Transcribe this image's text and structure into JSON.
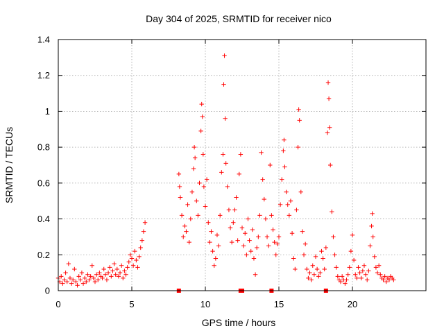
{
  "chart_data": {
    "type": "scatter",
    "title": "Day 304 of 2025, SRMTID for receiver nico",
    "xlabel": "GPS time / hours",
    "ylabel": "SRMTID / TECUs",
    "xlim": [
      0,
      25
    ],
    "ylim": [
      0,
      1.4
    ],
    "xticks": [
      0,
      5,
      10,
      15,
      20
    ],
    "yticks": [
      0,
      0.2,
      0.4,
      0.6,
      0.8,
      1,
      1.2,
      1.4
    ],
    "xtick_labels": [
      "0",
      "5",
      "10",
      "15",
      "20"
    ],
    "ytick_labels": [
      "0",
      "0.2",
      "0.4",
      "0.6",
      "0.8",
      "1",
      "1.2",
      "1.4"
    ],
    "grid": true,
    "marker": "+",
    "series": [
      {
        "name": "SRMTID",
        "color": "#ff0000",
        "points": [
          [
            0.0,
            0.07
          ],
          [
            0.1,
            0.05
          ],
          [
            0.2,
            0.08
          ],
          [
            0.3,
            0.04
          ],
          [
            0.4,
            0.06
          ],
          [
            0.5,
            0.1
          ],
          [
            0.6,
            0.05
          ],
          [
            0.7,
            0.15
          ],
          [
            0.8,
            0.07
          ],
          [
            0.9,
            0.04
          ],
          [
            1.0,
            0.06
          ],
          [
            1.1,
            0.12
          ],
          [
            1.2,
            0.05
          ],
          [
            1.3,
            0.03
          ],
          [
            1.4,
            0.08
          ],
          [
            1.5,
            0.06
          ],
          [
            1.6,
            0.1
          ],
          [
            1.7,
            0.04
          ],
          [
            1.8,
            0.07
          ],
          [
            1.9,
            0.05
          ],
          [
            2.0,
            0.09
          ],
          [
            2.1,
            0.06
          ],
          [
            2.2,
            0.08
          ],
          [
            2.3,
            0.14
          ],
          [
            2.4,
            0.07
          ],
          [
            2.5,
            0.05
          ],
          [
            2.6,
            0.09
          ],
          [
            2.7,
            0.06
          ],
          [
            2.8,
            0.1
          ],
          [
            2.9,
            0.08
          ],
          [
            3.0,
            0.07
          ],
          [
            3.1,
            0.12
          ],
          [
            3.2,
            0.09
          ],
          [
            3.3,
            0.06
          ],
          [
            3.4,
            0.1
          ],
          [
            3.5,
            0.13
          ],
          [
            3.6,
            0.08
          ],
          [
            3.7,
            0.11
          ],
          [
            3.8,
            0.15
          ],
          [
            3.9,
            0.09
          ],
          [
            4.0,
            0.12
          ],
          [
            4.1,
            0.08
          ],
          [
            4.2,
            0.1
          ],
          [
            4.3,
            0.14
          ],
          [
            4.4,
            0.07
          ],
          [
            4.5,
            0.11
          ],
          [
            4.6,
            0.09
          ],
          [
            4.7,
            0.13
          ],
          [
            4.8,
            0.16
          ],
          [
            4.9,
            0.2
          ],
          [
            5.0,
            0.18
          ],
          [
            5.1,
            0.14
          ],
          [
            5.2,
            0.22
          ],
          [
            5.3,
            0.17
          ],
          [
            5.4,
            0.13
          ],
          [
            5.5,
            0.19
          ],
          [
            5.6,
            0.24
          ],
          [
            5.7,
            0.28
          ],
          [
            5.8,
            0.33
          ],
          [
            5.9,
            0.38
          ],
          [
            8.2,
            0.65
          ],
          [
            8.25,
            0.58
          ],
          [
            8.3,
            0.52
          ],
          [
            8.4,
            0.42
          ],
          [
            8.5,
            0.3
          ],
          [
            8.6,
            0.36
          ],
          [
            8.7,
            0.33
          ],
          [
            8.8,
            0.48
          ],
          [
            8.9,
            0.27
          ],
          [
            9.0,
            0.4
          ],
          [
            9.1,
            0.55
          ],
          [
            9.2,
            0.68
          ],
          [
            9.25,
            0.8
          ],
          [
            9.3,
            0.74
          ],
          [
            9.4,
            0.5
          ],
          [
            9.5,
            0.42
          ],
          [
            9.6,
            0.6
          ],
          [
            9.7,
            0.89
          ],
          [
            9.75,
            1.04
          ],
          [
            9.8,
            0.97
          ],
          [
            9.85,
            0.76
          ],
          [
            9.9,
            0.58
          ],
          [
            10.0,
            0.47
          ],
          [
            10.1,
            0.62
          ],
          [
            10.2,
            0.38
          ],
          [
            10.3,
            0.27
          ],
          [
            10.4,
            0.33
          ],
          [
            10.5,
            0.22
          ],
          [
            10.6,
            0.14
          ],
          [
            10.7,
            0.18
          ],
          [
            10.8,
            0.31
          ],
          [
            10.9,
            0.25
          ],
          [
            11.0,
            0.42
          ],
          [
            11.1,
            0.66
          ],
          [
            11.2,
            0.76
          ],
          [
            11.25,
            1.15
          ],
          [
            11.3,
            1.31
          ],
          [
            11.35,
            0.96
          ],
          [
            11.4,
            0.71
          ],
          [
            11.5,
            0.58
          ],
          [
            11.6,
            0.45
          ],
          [
            11.7,
            0.35
          ],
          [
            11.8,
            0.27
          ],
          [
            11.9,
            0.38
          ],
          [
            12.0,
            0.45
          ],
          [
            12.1,
            0.52
          ],
          [
            12.2,
            0.28
          ],
          [
            12.3,
            0.65
          ],
          [
            12.4,
            0.76
          ],
          [
            12.5,
            0.35
          ],
          [
            12.6,
            0.25
          ],
          [
            12.7,
            0.32
          ],
          [
            12.8,
            0.2
          ],
          [
            12.9,
            0.4
          ],
          [
            13.0,
            0.28
          ],
          [
            13.1,
            0.22
          ],
          [
            13.2,
            0.34
          ],
          [
            13.3,
            0.18
          ],
          [
            13.4,
            0.09
          ],
          [
            13.5,
            0.24
          ],
          [
            13.6,
            0.3
          ],
          [
            13.7,
            0.42
          ],
          [
            13.8,
            0.77
          ],
          [
            13.9,
            0.62
          ],
          [
            14.0,
            0.51
          ],
          [
            14.1,
            0.4
          ],
          [
            14.2,
            0.3
          ],
          [
            14.3,
            0.25
          ],
          [
            14.4,
            0.7
          ],
          [
            14.5,
            0.42
          ],
          [
            14.6,
            0.34
          ],
          [
            14.7,
            0.27
          ],
          [
            14.8,
            0.2
          ],
          [
            14.9,
            0.26
          ],
          [
            15.0,
            0.3
          ],
          [
            15.1,
            0.48
          ],
          [
            15.2,
            0.62
          ],
          [
            15.3,
            0.78
          ],
          [
            15.35,
            0.84
          ],
          [
            15.4,
            0.69
          ],
          [
            15.5,
            0.55
          ],
          [
            15.6,
            0.48
          ],
          [
            15.7,
            0.42
          ],
          [
            15.8,
            0.5
          ],
          [
            15.9,
            0.32
          ],
          [
            16.0,
            0.18
          ],
          [
            16.1,
            0.12
          ],
          [
            16.2,
            0.45
          ],
          [
            16.3,
            0.8
          ],
          [
            16.35,
            1.01
          ],
          [
            16.4,
            0.95
          ],
          [
            16.5,
            0.55
          ],
          [
            16.6,
            0.33
          ],
          [
            16.7,
            0.2
          ],
          [
            16.8,
            0.26
          ],
          [
            16.9,
            0.12
          ],
          [
            17.0,
            0.07
          ],
          [
            17.1,
            0.1
          ],
          [
            17.2,
            0.06
          ],
          [
            17.3,
            0.14
          ],
          [
            17.4,
            0.09
          ],
          [
            17.5,
            0.19
          ],
          [
            17.6,
            0.12
          ],
          [
            17.7,
            0.08
          ],
          [
            17.8,
            0.1
          ],
          [
            17.9,
            0.22
          ],
          [
            18.0,
            0.18
          ],
          [
            18.1,
            0.12
          ],
          [
            18.2,
            0.24
          ],
          [
            18.3,
            0.88
          ],
          [
            18.35,
            1.16
          ],
          [
            18.4,
            1.07
          ],
          [
            18.45,
            0.91
          ],
          [
            18.5,
            0.7
          ],
          [
            18.6,
            0.44
          ],
          [
            18.7,
            0.3
          ],
          [
            18.8,
            0.2
          ],
          [
            18.9,
            0.13
          ],
          [
            19.0,
            0.08
          ],
          [
            19.1,
            0.06
          ],
          [
            19.2,
            0.05
          ],
          [
            19.3,
            0.08
          ],
          [
            19.4,
            0.06
          ],
          [
            19.5,
            0.04
          ],
          [
            19.6,
            0.06
          ],
          [
            19.7,
            0.09
          ],
          [
            19.8,
            0.13
          ],
          [
            19.9,
            0.22
          ],
          [
            20.0,
            0.31
          ],
          [
            20.1,
            0.17
          ],
          [
            20.2,
            0.09
          ],
          [
            20.3,
            0.07
          ],
          [
            20.4,
            0.13
          ],
          [
            20.5,
            0.1
          ],
          [
            20.6,
            0.07
          ],
          [
            20.7,
            0.11
          ],
          [
            20.8,
            0.14
          ],
          [
            20.9,
            0.09
          ],
          [
            21.0,
            0.06
          ],
          [
            21.1,
            0.11
          ],
          [
            21.2,
            0.25
          ],
          [
            21.3,
            0.36
          ],
          [
            21.35,
            0.43
          ],
          [
            21.4,
            0.3
          ],
          [
            21.5,
            0.19
          ],
          [
            21.6,
            0.13
          ],
          [
            21.7,
            0.1
          ],
          [
            21.8,
            0.14
          ],
          [
            21.9,
            0.09
          ],
          [
            22.0,
            0.07
          ],
          [
            22.1,
            0.06
          ],
          [
            22.2,
            0.08
          ],
          [
            22.3,
            0.05
          ],
          [
            22.4,
            0.07
          ],
          [
            22.5,
            0.06
          ],
          [
            22.6,
            0.08
          ],
          [
            22.7,
            0.07
          ],
          [
            22.8,
            0.06
          ]
        ],
        "zero_points": [
          8.2,
          12.4,
          12.5,
          14.5,
          18.2
        ]
      }
    ]
  }
}
